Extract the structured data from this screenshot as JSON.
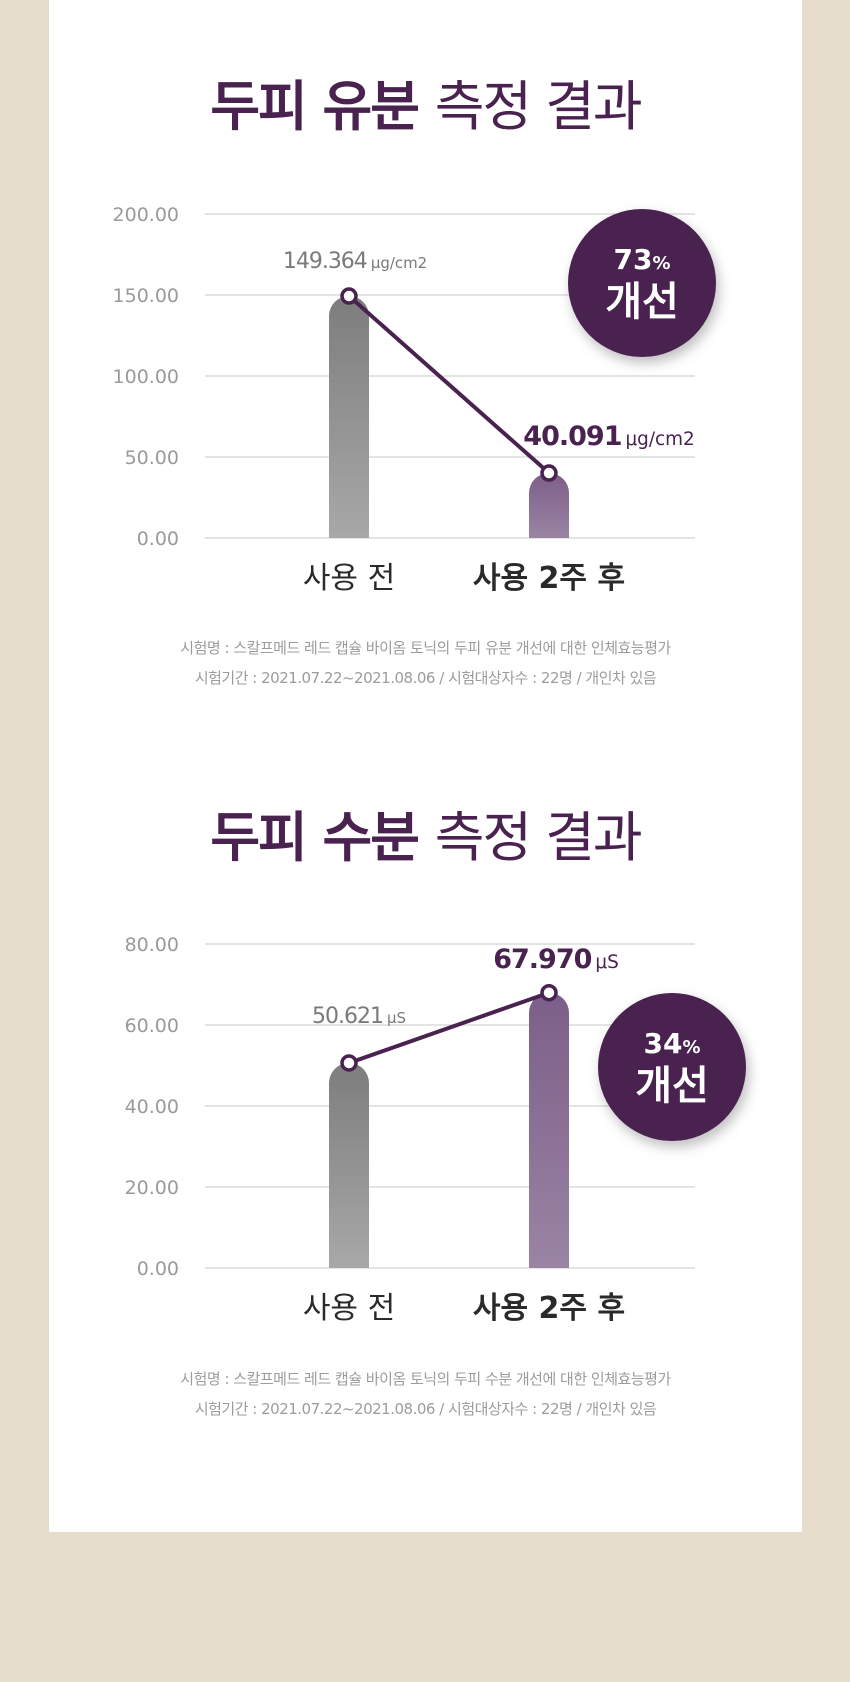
{
  "colors": {
    "background": "#e5dcc9",
    "card": "#ffffff",
    "brand_purple": "#4a2250",
    "bar_before": "#8f8f8f",
    "bar_after": "#8a7094",
    "grid": "#dcdcdc",
    "tick_text": "#9a9a9a"
  },
  "charts": [
    {
      "title_strong": "두피 유분",
      "title_light": "측정 결과",
      "badge": {
        "percent": "73",
        "percent_sign": "%",
        "label": "개선"
      },
      "notes": [
        "시험명 : 스칼프메드 레드 캡슐 바이옴 토닉의 두피 유분 개선에 대한 인체효능평가",
        "시험기간 : 2021.07.22~2021.08.06 / 시험대상자수 : 22명 / 개인차 있음"
      ]
    },
    {
      "title_strong": "두피 수분",
      "title_light": "측정 결과",
      "badge": {
        "percent": "34",
        "percent_sign": "%",
        "label": "개선"
      },
      "notes": [
        "시험명 : 스칼프메드 레드 캡슐 바이옴 토닉의 두피 수분 개선에 대한 인체효능평가",
        "시험기간 : 2021.07.22~2021.08.06 / 시험대상자수 : 22명 / 개인차 있음"
      ]
    }
  ],
  "chart_data": [
    {
      "type": "bar",
      "title": "두피 유분 측정 결과",
      "categories": [
        "사용 전",
        "사용 2주 후"
      ],
      "values": [
        149.364,
        40.091
      ],
      "value_labels": [
        "149.364",
        "40.091"
      ],
      "unit": "μg/cm2",
      "ylim": [
        0,
        200
      ],
      "yticks": [
        "0.00",
        "50.00",
        "100.00",
        "150.00",
        "200.00"
      ],
      "ytick_values": [
        0,
        50,
        100,
        150,
        200
      ],
      "grid": true,
      "connecting_line": true
    },
    {
      "type": "bar",
      "title": "두피 수분 측정 결과",
      "categories": [
        "사용 전",
        "사용 2주 후"
      ],
      "values": [
        50.621,
        67.97
      ],
      "value_labels": [
        "50.621",
        "67.970"
      ],
      "unit": "μS",
      "ylim": [
        0,
        80
      ],
      "yticks": [
        "0.00",
        "20.00",
        "40.00",
        "60.00",
        "80.00"
      ],
      "ytick_values": [
        0,
        20,
        40,
        60,
        80
      ],
      "grid": true,
      "connecting_line": true
    }
  ]
}
